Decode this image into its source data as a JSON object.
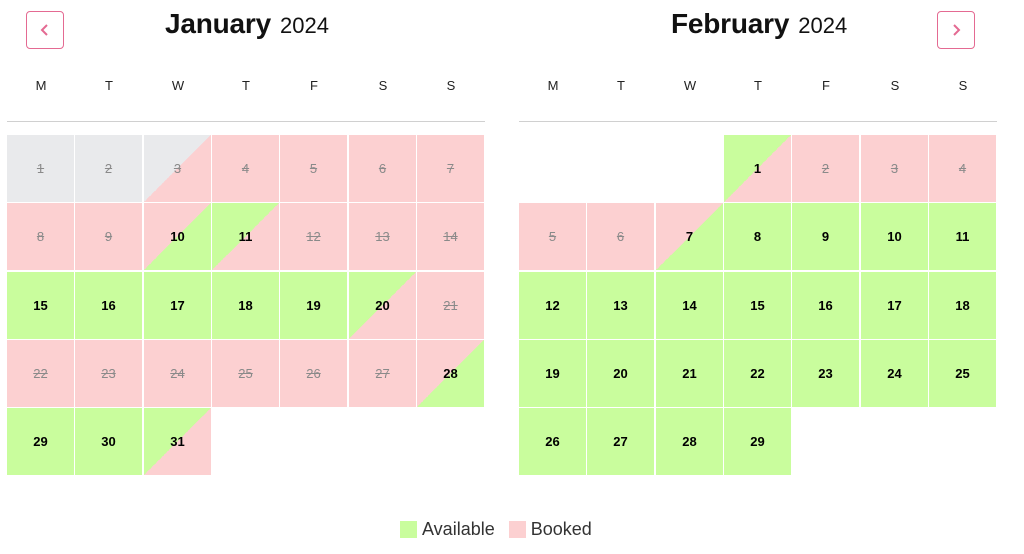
{
  "colors": {
    "available": "#c9fd9d",
    "booked": "#fcd0d1",
    "past": "#e9eaec",
    "accent": "#e46a92"
  },
  "nav": {
    "prev_icon": "chevron-left-icon",
    "next_icon": "chevron-right-icon"
  },
  "weekdays": [
    "M",
    "T",
    "W",
    "T",
    "F",
    "S",
    "S"
  ],
  "months": [
    {
      "name": "January",
      "year": "2024",
      "start_offset": 0,
      "days": [
        {
          "d": "1",
          "s": "past"
        },
        {
          "d": "2",
          "s": "past"
        },
        {
          "d": "3",
          "s": "past-booked"
        },
        {
          "d": "4",
          "s": "booked"
        },
        {
          "d": "5",
          "s": "booked"
        },
        {
          "d": "6",
          "s": "booked"
        },
        {
          "d": "7",
          "s": "booked"
        },
        {
          "d": "8",
          "s": "booked"
        },
        {
          "d": "9",
          "s": "booked"
        },
        {
          "d": "10",
          "s": "booked-available"
        },
        {
          "d": "11",
          "s": "available-booked"
        },
        {
          "d": "12",
          "s": "booked"
        },
        {
          "d": "13",
          "s": "booked"
        },
        {
          "d": "14",
          "s": "booked"
        },
        {
          "d": "15",
          "s": "available"
        },
        {
          "d": "16",
          "s": "available"
        },
        {
          "d": "17",
          "s": "available"
        },
        {
          "d": "18",
          "s": "available"
        },
        {
          "d": "19",
          "s": "available"
        },
        {
          "d": "20",
          "s": "available-booked"
        },
        {
          "d": "21",
          "s": "booked"
        },
        {
          "d": "22",
          "s": "booked"
        },
        {
          "d": "23",
          "s": "booked"
        },
        {
          "d": "24",
          "s": "booked"
        },
        {
          "d": "25",
          "s": "booked"
        },
        {
          "d": "26",
          "s": "booked"
        },
        {
          "d": "27",
          "s": "booked"
        },
        {
          "d": "28",
          "s": "booked-available"
        },
        {
          "d": "29",
          "s": "available"
        },
        {
          "d": "30",
          "s": "available"
        },
        {
          "d": "31",
          "s": "available-booked"
        }
      ]
    },
    {
      "name": "February",
      "year": "2024",
      "start_offset": 3,
      "days": [
        {
          "d": "1",
          "s": "available-booked"
        },
        {
          "d": "2",
          "s": "booked"
        },
        {
          "d": "3",
          "s": "booked"
        },
        {
          "d": "4",
          "s": "booked"
        },
        {
          "d": "5",
          "s": "booked"
        },
        {
          "d": "6",
          "s": "booked"
        },
        {
          "d": "7",
          "s": "booked-available"
        },
        {
          "d": "8",
          "s": "available"
        },
        {
          "d": "9",
          "s": "available"
        },
        {
          "d": "10",
          "s": "available"
        },
        {
          "d": "11",
          "s": "available"
        },
        {
          "d": "12",
          "s": "available"
        },
        {
          "d": "13",
          "s": "available"
        },
        {
          "d": "14",
          "s": "available"
        },
        {
          "d": "15",
          "s": "available"
        },
        {
          "d": "16",
          "s": "available"
        },
        {
          "d": "17",
          "s": "available"
        },
        {
          "d": "18",
          "s": "available"
        },
        {
          "d": "19",
          "s": "available"
        },
        {
          "d": "20",
          "s": "available"
        },
        {
          "d": "21",
          "s": "available"
        },
        {
          "d": "22",
          "s": "available"
        },
        {
          "d": "23",
          "s": "available"
        },
        {
          "d": "24",
          "s": "available"
        },
        {
          "d": "25",
          "s": "available"
        },
        {
          "d": "26",
          "s": "available"
        },
        {
          "d": "27",
          "s": "available"
        },
        {
          "d": "28",
          "s": "available"
        },
        {
          "d": "29",
          "s": "available"
        }
      ]
    }
  ],
  "legend": {
    "available_label": "Available",
    "booked_label": "Booked"
  }
}
